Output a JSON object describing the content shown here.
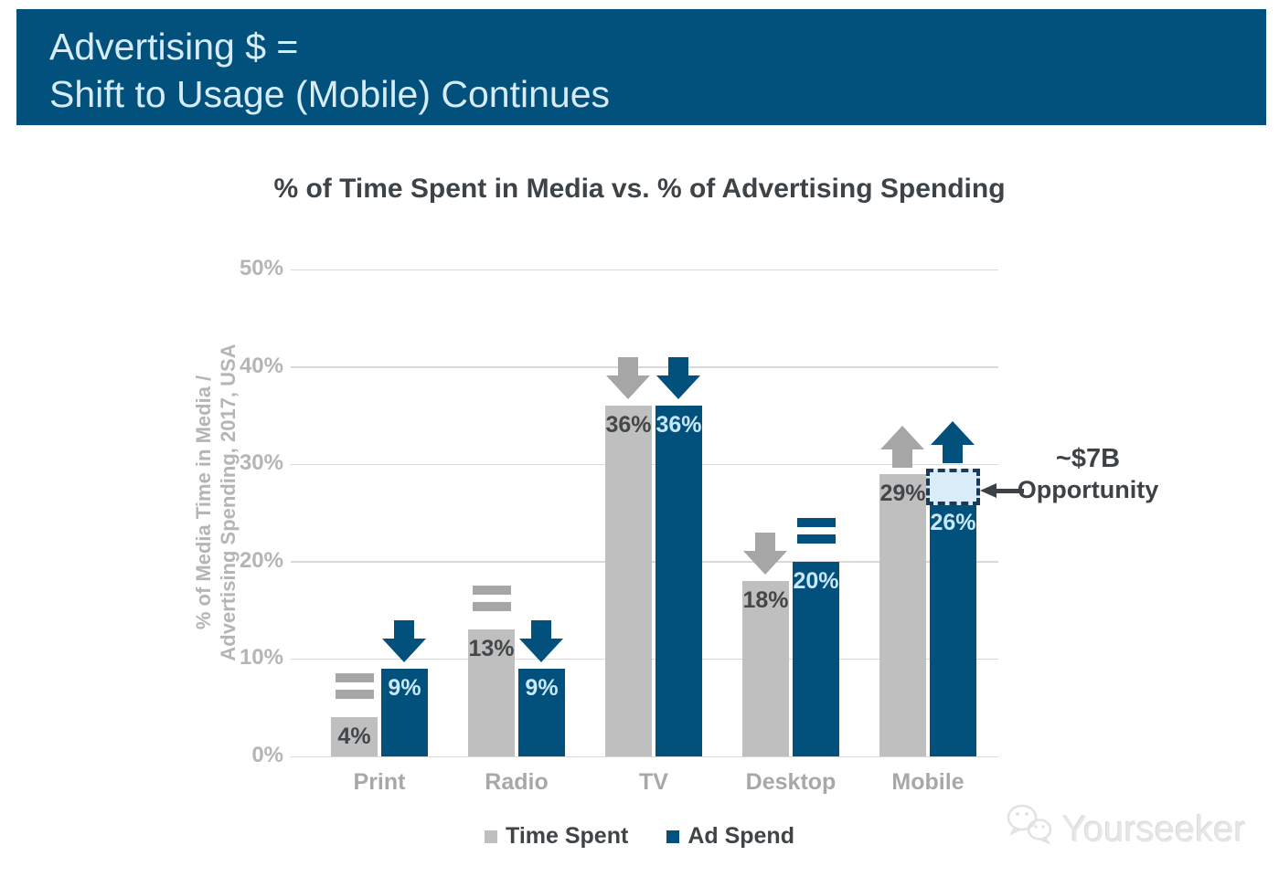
{
  "banner": {
    "line1": "Advertising $ =",
    "line2": "Shift to Usage (Mobile) Continues"
  },
  "chart_data": {
    "type": "bar",
    "title": "% of Time Spent in Media vs. % of Advertising Spending",
    "ylabel_lines": [
      "% of Media Time in Media /",
      "Advertising Spending, 2017, USA"
    ],
    "categories": [
      "Print",
      "Radio",
      "TV",
      "Desktop",
      "Mobile"
    ],
    "series": [
      {
        "name": "Time Spent",
        "color": "#bfbfbf",
        "label_color": "#43474a",
        "symbol_color": "#a6a6a6",
        "values": [
          4,
          13,
          36,
          18,
          29
        ],
        "trends": [
          "equal",
          "equal",
          "down",
          "down",
          "up"
        ]
      },
      {
        "name": "Ad Spend",
        "color": "#02517d",
        "label_color": "#c9e7f6",
        "symbol_color": "#02517d",
        "values": [
          9,
          9,
          36,
          20,
          26
        ],
        "trends": [
          "down",
          "down",
          "down",
          "equal",
          "up"
        ]
      }
    ],
    "y_ticks": [
      "50%",
      "40%",
      "30%",
      "20%",
      "10%",
      "0%"
    ],
    "ylim": [
      0,
      50
    ],
    "grid": true,
    "legend_position": "bottom",
    "annotation": {
      "line1": "~$7B",
      "line2": "Opportunity",
      "box_fill": "#d9ecf8",
      "box_border": "#1b3a5a"
    }
  },
  "legend": {
    "items": [
      {
        "label": "Time Spent",
        "color": "#bfbfbf"
      },
      {
        "label": "Ad Spend",
        "color": "#02517d"
      }
    ]
  },
  "watermark": {
    "text": "Yourseeker"
  },
  "colors": {
    "banner_bg": "#02517d",
    "banner_text": "#d6ecf8",
    "title": "#3d4347",
    "axis_text": "#b5b5b5",
    "category_text": "#a8a8a8",
    "gridline": "#d9d9d9",
    "annotation": "#3d4247",
    "watermark": "#e6e6e6"
  }
}
